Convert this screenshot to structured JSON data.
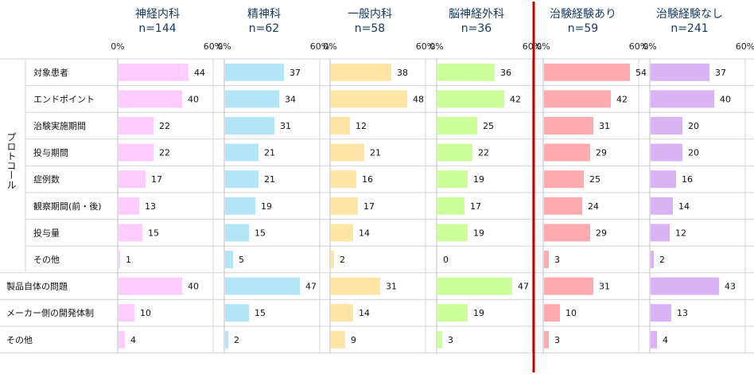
{
  "chart_data": {
    "type": "bar",
    "orientation": "horizontal",
    "xlim": [
      0,
      60
    ],
    "tick_labels": [
      "0%",
      "60%"
    ],
    "group_label": "プロトコール",
    "categories": [
      "対象患者",
      "エンドポイント",
      "治験実施期間",
      "投与期間",
      "症例数",
      "観察期間(前・後)",
      "投与量",
      "その他",
      "製品自体の問題",
      "メーカー側の開発体制",
      "その他"
    ],
    "panels": [
      {
        "name": "神経内科",
        "n": "n=144",
        "color": "#ffccff",
        "values": [
          44,
          40,
          22,
          22,
          17,
          13,
          15,
          1,
          40,
          10,
          4
        ]
      },
      {
        "name": "精神科",
        "n": "n=62",
        "color": "#b3e5f7",
        "values": [
          37,
          34,
          31,
          21,
          21,
          19,
          15,
          5,
          47,
          15,
          2
        ]
      },
      {
        "name": "一般内科",
        "n": "n=58",
        "color": "#ffe6a6",
        "values": [
          38,
          48,
          12,
          21,
          16,
          17,
          14,
          2,
          31,
          14,
          9
        ]
      },
      {
        "name": "脳神経外科",
        "n": "n=36",
        "color": "#ccff99",
        "values": [
          36,
          42,
          25,
          22,
          19,
          17,
          19,
          0,
          47,
          19,
          3
        ]
      },
      {
        "name": "治験経験あり",
        "n": "n=59",
        "color": "#ffaab0",
        "values": [
          54,
          42,
          31,
          29,
          25,
          24,
          29,
          3,
          31,
          10,
          3
        ]
      },
      {
        "name": "治験経験なし",
        "n": "n=241",
        "color": "#dab3f5",
        "values": [
          37,
          40,
          20,
          20,
          16,
          14,
          12,
          2,
          43,
          13,
          4
        ]
      }
    ],
    "divider_color": "#c00000"
  }
}
